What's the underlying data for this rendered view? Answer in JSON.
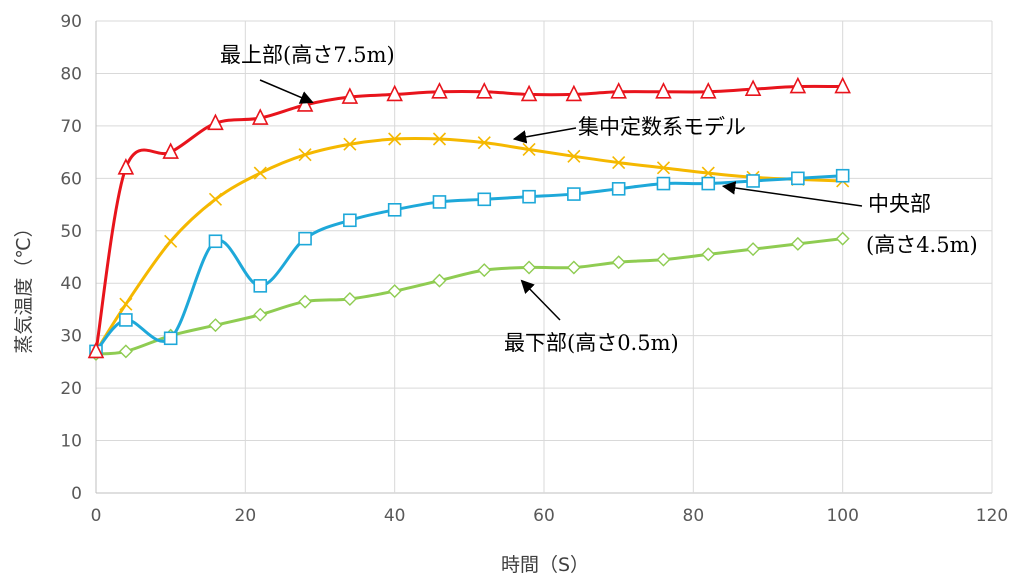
{
  "chart_data": {
    "type": "line",
    "title": "",
    "xlabel": "時間（S）",
    "ylabel": "蒸気温度（℃）",
    "xlim": [
      0,
      120
    ],
    "ylim": [
      0,
      90
    ],
    "x_ticks": [
      0,
      20,
      40,
      60,
      80,
      100,
      120
    ],
    "y_ticks": [
      0,
      10,
      20,
      30,
      40,
      50,
      60,
      70,
      80,
      90
    ],
    "grid": true,
    "legend": "none",
    "series": [
      {
        "name": "最上部(高さ7.5m)",
        "color": "#e8141c",
        "marker": "triangle",
        "x": [
          0,
          4,
          10,
          16,
          22,
          28,
          34,
          40,
          46,
          52,
          58,
          64,
          70,
          76,
          82,
          88,
          94,
          100
        ],
        "y": [
          27,
          62,
          65,
          70.5,
          71.5,
          74,
          75.5,
          76,
          76.5,
          76.5,
          76,
          76,
          76.5,
          76.5,
          76.5,
          77,
          77.5,
          77.5
        ]
      },
      {
        "name": "集中定数系モデル",
        "color": "#f5b800",
        "marker": "x",
        "x": [
          0,
          4,
          10,
          16,
          22,
          28,
          34,
          40,
          46,
          52,
          58,
          64,
          70,
          76,
          82,
          88,
          94,
          100
        ],
        "y": [
          27,
          36,
          48,
          56,
          61,
          64.5,
          66.5,
          67.5,
          67.5,
          66.8,
          65.5,
          64.2,
          63,
          62,
          61,
          60.2,
          59.8,
          59.5
        ]
      },
      {
        "name": "中央部(高さ4.5m)",
        "color": "#1ea8d9",
        "marker": "square",
        "x": [
          0,
          4,
          10,
          16,
          22,
          28,
          34,
          40,
          46,
          52,
          58,
          64,
          70,
          76,
          82,
          88,
          94,
          100
        ],
        "y": [
          27,
          33,
          29.5,
          48,
          39.5,
          48.5,
          52,
          54,
          55.5,
          56,
          56.5,
          57,
          58,
          59,
          59,
          59.5,
          60,
          60.5
        ]
      },
      {
        "name": "最下部(高さ0.5m)",
        "color": "#8fcc52",
        "marker": "diamond",
        "x": [
          0,
          4,
          10,
          16,
          22,
          28,
          34,
          40,
          46,
          52,
          58,
          64,
          70,
          76,
          82,
          88,
          94,
          100
        ],
        "y": [
          26.5,
          27,
          30,
          32,
          34,
          36.5,
          37,
          38.5,
          40.5,
          42.5,
          43,
          43,
          44,
          44.5,
          45.5,
          46.5,
          47.5,
          48.5
        ]
      }
    ],
    "annotations": [
      {
        "text": "最上部(高さ7.5m)",
        "series": 0,
        "target_x": 29,
        "target_y": 74.5
      },
      {
        "text": "集中定数系モデル",
        "series": 1,
        "target_x": 56,
        "target_y": 67.5
      },
      {
        "text": "中央部",
        "series": 2,
        "target_x": 84,
        "target_y": 58.5
      },
      {
        "text": "(高さ4.5m)",
        "series": 2
      },
      {
        "text": "最下部(高さ0.5m)",
        "series": 3,
        "target_x": 57,
        "target_y": 40.5
      }
    ]
  }
}
